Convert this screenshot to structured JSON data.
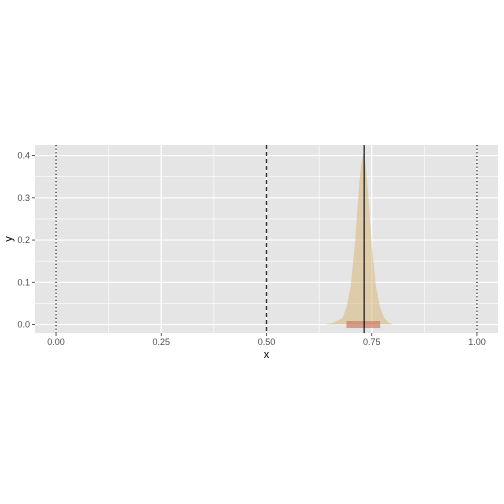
{
  "chart_data": {
    "type": "area",
    "title": "",
    "xlabel": "x",
    "ylabel": "y",
    "xlim": [
      -0.05,
      1.05
    ],
    "ylim": [
      -0.02,
      0.425
    ],
    "x_ticks": [
      0,
      0.25,
      0.5,
      0.75,
      1
    ],
    "x_tick_labels": [
      "0.00",
      "0.25",
      "0.50",
      "0.75",
      "1.00"
    ],
    "y_ticks": [
      0,
      0.1,
      0.2,
      0.3,
      0.4
    ],
    "y_tick_labels": [
      "0.0",
      "0.1",
      "0.2",
      "0.3",
      "0.4"
    ],
    "grid": true,
    "legend": "none",
    "density": {
      "x": [
        0.64,
        0.66,
        0.68,
        0.69,
        0.7,
        0.71,
        0.72,
        0.725,
        0.73,
        0.735,
        0.74,
        0.75,
        0.76,
        0.77,
        0.78,
        0.79,
        0.8
      ],
      "y": [
        0.0,
        0.005,
        0.015,
        0.04,
        0.09,
        0.19,
        0.33,
        0.38,
        0.405,
        0.38,
        0.33,
        0.19,
        0.09,
        0.04,
        0.015,
        0.005,
        0.0
      ],
      "fill": "#d9b77a"
    },
    "interval": {
      "x_min": 0.69,
      "x_max": 0.77,
      "y": 0.0,
      "fill": "#c97a64"
    },
    "vlines": [
      {
        "x": 0,
        "style": "dotted",
        "color": "#000000"
      },
      {
        "x": 0.5,
        "style": "dashed",
        "color": "#333333"
      },
      {
        "x": 0.732,
        "style": "solid",
        "color": "#000000"
      },
      {
        "x": 1,
        "style": "dotted",
        "color": "#000000"
      }
    ],
    "panel_background": "#e5e5e5",
    "grid_color": "#ffffff"
  }
}
